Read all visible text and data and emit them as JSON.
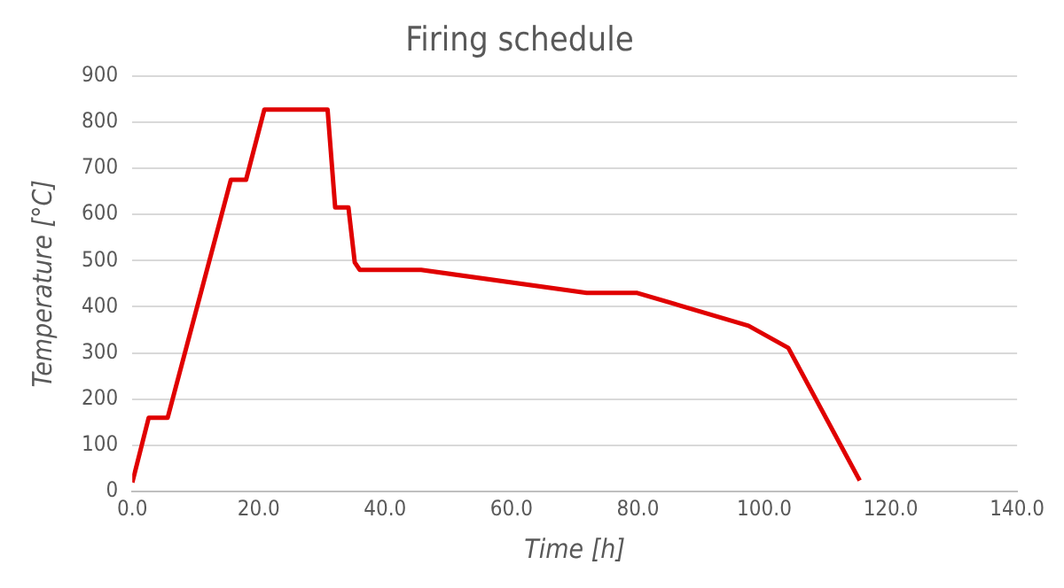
{
  "chart_data": {
    "type": "line",
    "title": "Firing schedule",
    "xlabel": "Time [h]",
    "ylabel": "Temperature [°C]",
    "x": [
      0,
      2.6,
      5.6,
      15.6,
      18,
      20.9,
      30.9,
      32.1,
      34.2,
      35.2,
      36,
      45.7,
      71.9,
      79.9,
      97.5,
      103.8,
      115.1
    ],
    "series": [
      {
        "color": "#e00000",
        "values": [
          20,
          160,
          160,
          675,
          675,
          827,
          827,
          615,
          615,
          496,
          480,
          480,
          430,
          430,
          359,
          311,
          24
        ]
      }
    ],
    "xlim": [
      0,
      140
    ],
    "xticks": [
      {
        "value": 0,
        "label": "0.0"
      },
      {
        "value": 20,
        "label": "20.0"
      },
      {
        "value": 40,
        "label": "40.0"
      },
      {
        "value": 60,
        "label": "60.0"
      },
      {
        "value": 80,
        "label": "80.0"
      },
      {
        "value": 100,
        "label": "100.0"
      },
      {
        "value": 120,
        "label": "120.0"
      },
      {
        "value": 140,
        "label": "140.0"
      }
    ],
    "ylim": [
      0,
      900
    ],
    "yticks": [
      0,
      100,
      200,
      300,
      400,
      500,
      600,
      700,
      800,
      900
    ],
    "grid": "y",
    "legend": false,
    "marker": "none",
    "line_style": "solid"
  }
}
